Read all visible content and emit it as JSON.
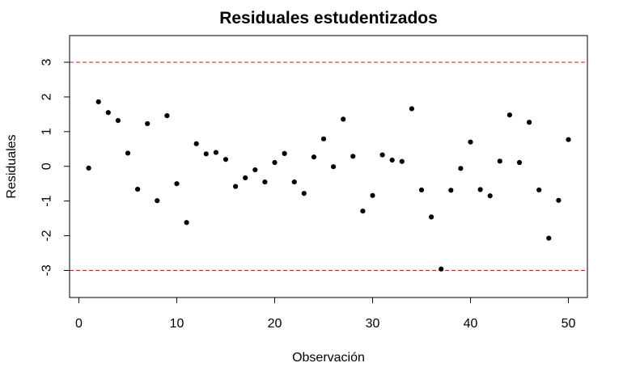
{
  "chart_data": {
    "type": "scatter",
    "title": "Residuales estudentizados",
    "xlabel": "Observación",
    "ylabel": "Residuales",
    "xlim": [
      0,
      52
    ],
    "ylim": [
      -3.75,
      3.75
    ],
    "x_ticks": [
      0,
      10,
      20,
      30,
      40,
      50
    ],
    "y_ticks": [
      -3,
      -2,
      -1,
      0,
      1,
      2,
      3
    ],
    "x_tick_labels": [
      "0",
      "10",
      "20",
      "30",
      "40",
      "50"
    ],
    "y_tick_labels": [
      "-3",
      "-2",
      "-1",
      "0",
      "1",
      "2",
      "3"
    ],
    "grid": false,
    "series": [
      {
        "x": [
          1,
          2,
          3,
          4,
          5,
          6,
          7,
          8,
          9,
          10,
          11,
          12,
          13,
          14,
          15,
          16,
          17,
          18,
          19,
          20,
          21,
          22,
          23,
          24,
          25,
          26,
          27,
          28,
          29,
          30,
          31,
          32,
          33,
          34,
          35,
          36,
          37,
          38,
          39,
          40,
          41,
          42,
          43,
          44,
          45,
          46,
          47,
          48,
          49,
          50
        ],
        "y": [
          -0.05,
          1.86,
          1.55,
          1.32,
          0.38,
          -0.66,
          1.23,
          -0.99,
          1.46,
          -0.5,
          -1.62,
          0.65,
          0.36,
          0.4,
          0.2,
          -0.58,
          -0.33,
          -0.1,
          -0.45,
          0.11,
          0.37,
          -0.45,
          -0.78,
          0.27,
          0.79,
          -0.01,
          1.36,
          0.29,
          -1.29,
          -0.84,
          0.33,
          0.18,
          0.14,
          1.66,
          -0.68,
          -1.46,
          -2.96,
          -0.69,
          -0.06,
          0.7,
          -0.67,
          -0.85,
          0.15,
          1.48,
          0.11,
          1.27,
          -0.68,
          -2.07,
          -0.98,
          0.77
        ],
        "color": "#000000"
      }
    ],
    "reference_lines": [
      {
        "y": 3,
        "color": "#ff0000",
        "style": "dashed"
      },
      {
        "y": -3,
        "color": "#ff0000",
        "style": "dashed"
      }
    ]
  }
}
